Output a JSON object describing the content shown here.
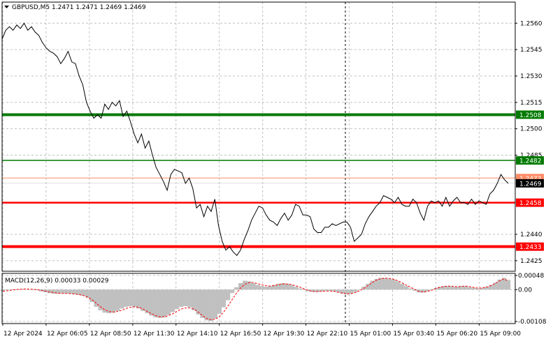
{
  "header": {
    "symbol_line": "GBPUSD,M5  1.2471 1.2471 1.2469 1.2469",
    "dropdown_icon": "triangle-down-icon"
  },
  "macd_header": "MACD(12,26,9) 0.00033 0.00029",
  "colors": {
    "price_line": "#000000",
    "grid": "#c0c0c0",
    "green_level": "#007a00",
    "red_level": "#ff0000",
    "hist": "#c0c0c0",
    "signal": "#ff0000"
  },
  "chart_data": [
    {
      "type": "line",
      "title": "GBPUSD,M5",
      "ylim": [
        1.2419,
        1.2572
      ],
      "yticks": [
        "1.2560",
        "1.2545",
        "1.2530",
        "1.2515",
        "1.2500",
        "1.2485",
        "1.2440",
        "1.2425"
      ],
      "xticks": [
        "12 Apr 2024",
        "12 Apr 06:05",
        "12 Apr 08:50",
        "12 Apr 11:30",
        "12 Apr 14:10",
        "12 Apr 16:50",
        "12 Apr 19:30",
        "12 Apr 22:10",
        "15 Apr 01:00",
        "15 Apr 03:40",
        "15 Apr 06:20",
        "15 Apr 09:00"
      ],
      "horizontal_lines": [
        {
          "value": 1.2508,
          "label": "1.2508",
          "color": "#007a00",
          "style": "thick"
        },
        {
          "value": 1.2482,
          "label": "1.2482",
          "color": "#007a00",
          "style": "thin"
        },
        {
          "value": 1.2458,
          "label": "1.2458",
          "color": "#ff0000",
          "style": "medium"
        },
        {
          "value": 1.2433,
          "label": "1.2433",
          "color": "#ff0000",
          "style": "thick"
        }
      ],
      "ask_line": {
        "value": 1.2472,
        "label": "1.2472",
        "color": "#ff8c66"
      },
      "bid_line": {
        "value": 1.2469,
        "label": "1.2469"
      },
      "series": [
        {
          "values": [
            1.2551,
            1.2556,
            1.2558,
            1.2556,
            1.2559,
            1.2557,
            1.256,
            1.2556,
            1.2558,
            1.2555,
            1.2553,
            1.2549,
            1.2546,
            1.2544,
            1.2543,
            1.2541,
            1.2537,
            1.254,
            1.2544,
            1.2538,
            1.2537,
            1.253,
            1.2525,
            1.2515,
            1.251,
            1.2506,
            1.2508,
            1.2506,
            1.2514,
            1.2511,
            1.2515,
            1.2513,
            1.2516,
            1.2507,
            1.251,
            1.2504,
            1.2497,
            1.2492,
            1.2497,
            1.2489,
            1.2493,
            1.2485,
            1.2478,
            1.2474,
            1.247,
            1.2465,
            1.2474,
            1.2477,
            1.2476,
            1.2475,
            1.2469,
            1.2472,
            1.2466,
            1.2455,
            1.2457,
            1.245,
            1.2456,
            1.2453,
            1.246,
            1.2445,
            1.2436,
            1.2431,
            1.2433,
            1.243,
            1.2428,
            1.2431,
            1.2437,
            1.2442,
            1.2448,
            1.2452,
            1.2456,
            1.2455,
            1.2451,
            1.2448,
            1.2447,
            1.2445,
            1.2449,
            1.2452,
            1.2448,
            1.2451,
            1.2457,
            1.2456,
            1.2451,
            1.2451,
            1.245,
            1.2443,
            1.2441,
            1.2441,
            1.2444,
            1.2444,
            1.2446,
            1.2445,
            1.2446,
            1.2447,
            1.2447,
            1.2444,
            1.2436,
            1.2438,
            1.244,
            1.2446,
            1.245,
            1.2453,
            1.2456,
            1.2458,
            1.2462,
            1.2461,
            1.246,
            1.2458,
            1.2461,
            1.2457,
            1.2456,
            1.2456,
            1.246,
            1.2458,
            1.2452,
            1.2448,
            1.2456,
            1.2459,
            1.2458,
            1.2459,
            1.2456,
            1.2461,
            1.2456,
            1.2459,
            1.2461,
            1.2458,
            1.2458,
            1.2457,
            1.246,
            1.2457,
            1.2459,
            1.2458,
            1.2457,
            1.2463,
            1.2465,
            1.2469,
            1.2474,
            1.2471,
            1.2469
          ]
        }
      ]
    },
    {
      "type": "bar",
      "title": "MACD(12,26,9)",
      "ylim": [
        -0.00115,
        0.00055
      ],
      "yticks": [
        "0.00048",
        "0.00",
        "-0.00108"
      ],
      "series": [
        {
          "name": "MACD",
          "values": [
            -4e-05,
            -2e-05,
            0,
            1e-05,
            2e-05,
            2e-05,
            1e-05,
            0,
            -2e-05,
            -6e-05,
            -9e-05,
            -0.00012,
            -0.00014,
            -0.00014,
            -0.00013,
            -0.00013,
            -0.00014,
            -0.00016,
            -0.00018,
            -0.00021,
            -0.00028,
            -0.00042,
            -0.00058,
            -0.0007,
            -0.00078,
            -0.0008,
            -0.00078,
            -0.00072,
            -0.00064,
            -0.00058,
            -0.00056,
            -0.00058,
            -0.00064,
            -0.00072,
            -0.0008,
            -0.00088,
            -0.00094,
            -0.00096,
            -0.00094,
            -0.00086,
            -0.00076,
            -0.00066,
            -0.00058,
            -0.00056,
            -0.0006,
            -0.0007,
            -0.00084,
            -0.00096,
            -0.00104,
            -0.00106,
            -0.00098,
            -0.00082,
            -0.0006,
            -0.00036,
            -0.00012,
            8e-05,
            0.00022,
            0.0003,
            0.00028,
            0.00022,
            0.00016,
            0.00012,
            0.0001,
            0.00012,
            0.00016,
            0.0002,
            0.00022,
            0.0002,
            0.00016,
            0.0001,
            4e-05,
            -2e-05,
            -6e-05,
            -8e-05,
            -8e-05,
            -6e-05,
            -4e-05,
            -4e-05,
            -6e-05,
            -0.0001,
            -0.00014,
            -0.00016,
            -0.00014,
            -8e-05,
            0,
            0.0001,
            0.0002,
            0.0003,
            0.00036,
            0.0004,
            0.0004,
            0.00038,
            0.00034,
            0.00028,
            0.0002,
            0.00012,
            4e-05,
            -4e-05,
            -0.0001,
            -0.0001,
            -6e-05,
            0,
            6e-05,
            0.0001,
            0.00012,
            0.00012,
            0.0001,
            0.0001,
            0.00012,
            0.00012,
            8e-05,
            6e-05,
            4e-05,
            6e-05,
            0.0001,
            0.00016,
            0.00024,
            0.00034,
            0.0004,
            0.00033
          ]
        },
        {
          "name": "Signal",
          "values": [
            -6e-05,
            -4e-05,
            -2e-05,
            0,
            1e-05,
            2e-05,
            2e-05,
            1e-05,
            0,
            -2e-05,
            -5e-05,
            -8e-05,
            -0.0001,
            -0.00012,
            -0.00013,
            -0.00013,
            -0.00014,
            -0.00015,
            -0.00017,
            -0.0002,
            -0.00025,
            -0.00034,
            -0.00046,
            -0.00058,
            -0.00068,
            -0.00074,
            -0.00076,
            -0.00074,
            -0.0007,
            -0.00064,
            -0.0006,
            -0.00058,
            -0.0006,
            -0.00066,
            -0.00074,
            -0.00082,
            -0.00088,
            -0.00092,
            -0.00092,
            -0.00088,
            -0.00082,
            -0.00074,
            -0.00066,
            -0.00062,
            -0.00062,
            -0.00066,
            -0.00076,
            -0.00088,
            -0.00098,
            -0.00102,
            -0.001,
            -0.00092,
            -0.00076,
            -0.00056,
            -0.00034,
            -0.00012,
            6e-05,
            0.00018,
            0.00024,
            0.00024,
            0.0002,
            0.00016,
            0.00013,
            0.00012,
            0.00014,
            0.00017,
            0.00019,
            0.00019,
            0.00017,
            0.00013,
            8e-05,
            2e-05,
            -3e-05,
            -6e-05,
            -7e-05,
            -6e-05,
            -5e-05,
            -5e-05,
            -6e-05,
            -9e-05,
            -0.00012,
            -0.00014,
            -0.00014,
            -0.0001,
            -4e-05,
            4e-05,
            0.00014,
            0.00024,
            0.00032,
            0.00037,
            0.00039,
            0.00038,
            0.00035,
            0.0003,
            0.00023,
            0.00015,
            8e-05,
            1e-05,
            -6e-05,
            -8e-05,
            -6e-05,
            -2e-05,
            4e-05,
            8e-05,
            0.00011,
            0.00012,
            0.00011,
            0.0001,
            0.00011,
            0.00012,
            0.0001,
            7e-05,
            5e-05,
            6e-05,
            9e-05,
            0.00014,
            0.00021,
            0.0003,
            0.00036,
            0.00029
          ]
        }
      ]
    }
  ]
}
